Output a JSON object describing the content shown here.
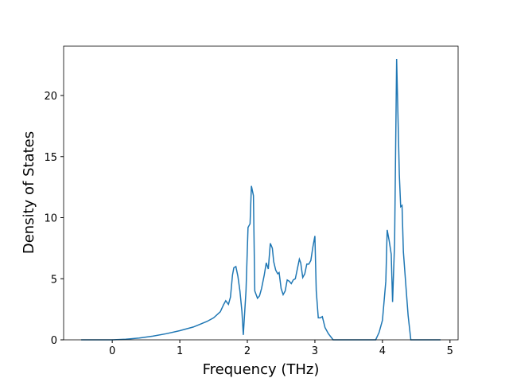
{
  "chart_data": {
    "type": "line",
    "xlabel": "Frequency (THz)",
    "ylabel": "Density of States",
    "x": [
      -0.46,
      0,
      0.2,
      0.4,
      0.6,
      0.8,
      1.0,
      1.2,
      1.4,
      1.5,
      1.6,
      1.65,
      1.68,
      1.72,
      1.75,
      1.78,
      1.8,
      1.83,
      1.86,
      1.89,
      1.92,
      1.94,
      1.98,
      2.01,
      2.04,
      2.06,
      2.09,
      2.11,
      2.15,
      2.18,
      2.21,
      2.25,
      2.28,
      2.31,
      2.34,
      2.37,
      2.39,
      2.42,
      2.45,
      2.47,
      2.5,
      2.53,
      2.56,
      2.59,
      2.62,
      2.65,
      2.68,
      2.71,
      2.74,
      2.77,
      2.79,
      2.82,
      2.85,
      2.88,
      2.91,
      2.94,
      2.97,
      3.0,
      3.02,
      3.05,
      3.08,
      3.11,
      3.15,
      3.2,
      3.27,
      3.9,
      3.95,
      4.0,
      4.05,
      4.07,
      4.1,
      4.13,
      4.15,
      4.18,
      4.21,
      4.25,
      4.27,
      4.29,
      4.31,
      4.35,
      4.38,
      4.42,
      4.86
    ],
    "series": [
      {
        "color": "#1f77b4",
        "values": [
          0,
          0,
          0.05,
          0.15,
          0.3,
          0.5,
          0.75,
          1.05,
          1.5,
          1.8,
          2.3,
          2.9,
          3.2,
          2.9,
          3.5,
          5.3,
          5.9,
          6.0,
          5.2,
          4.0,
          2.3,
          0.4,
          4.0,
          9.2,
          9.5,
          12.6,
          11.8,
          4.0,
          3.4,
          3.6,
          4.2,
          5.3,
          6.3,
          5.8,
          7.9,
          7.5,
          6.4,
          5.7,
          5.4,
          5.5,
          4.2,
          3.7,
          4.0,
          4.9,
          4.8,
          4.6,
          4.9,
          5.0,
          5.8,
          6.6,
          6.3,
          5.1,
          5.4,
          6.2,
          6.2,
          6.5,
          7.6,
          8.5,
          4.0,
          1.8,
          1.8,
          1.9,
          1.0,
          0.5,
          0,
          0,
          0.6,
          1.6,
          4.8,
          9.0,
          8.1,
          7.0,
          3.1,
          8.0,
          23.0,
          13.5,
          10.9,
          11.0,
          7.2,
          4.2,
          2.0,
          0,
          0
        ]
      }
    ],
    "xlim": [
      -0.72,
      5.12
    ],
    "xticks": [
      0,
      1,
      2,
      3,
      4,
      5
    ],
    "ylim": [
      0,
      24.04
    ],
    "yticks": [
      0,
      5,
      10,
      15,
      20
    ]
  }
}
